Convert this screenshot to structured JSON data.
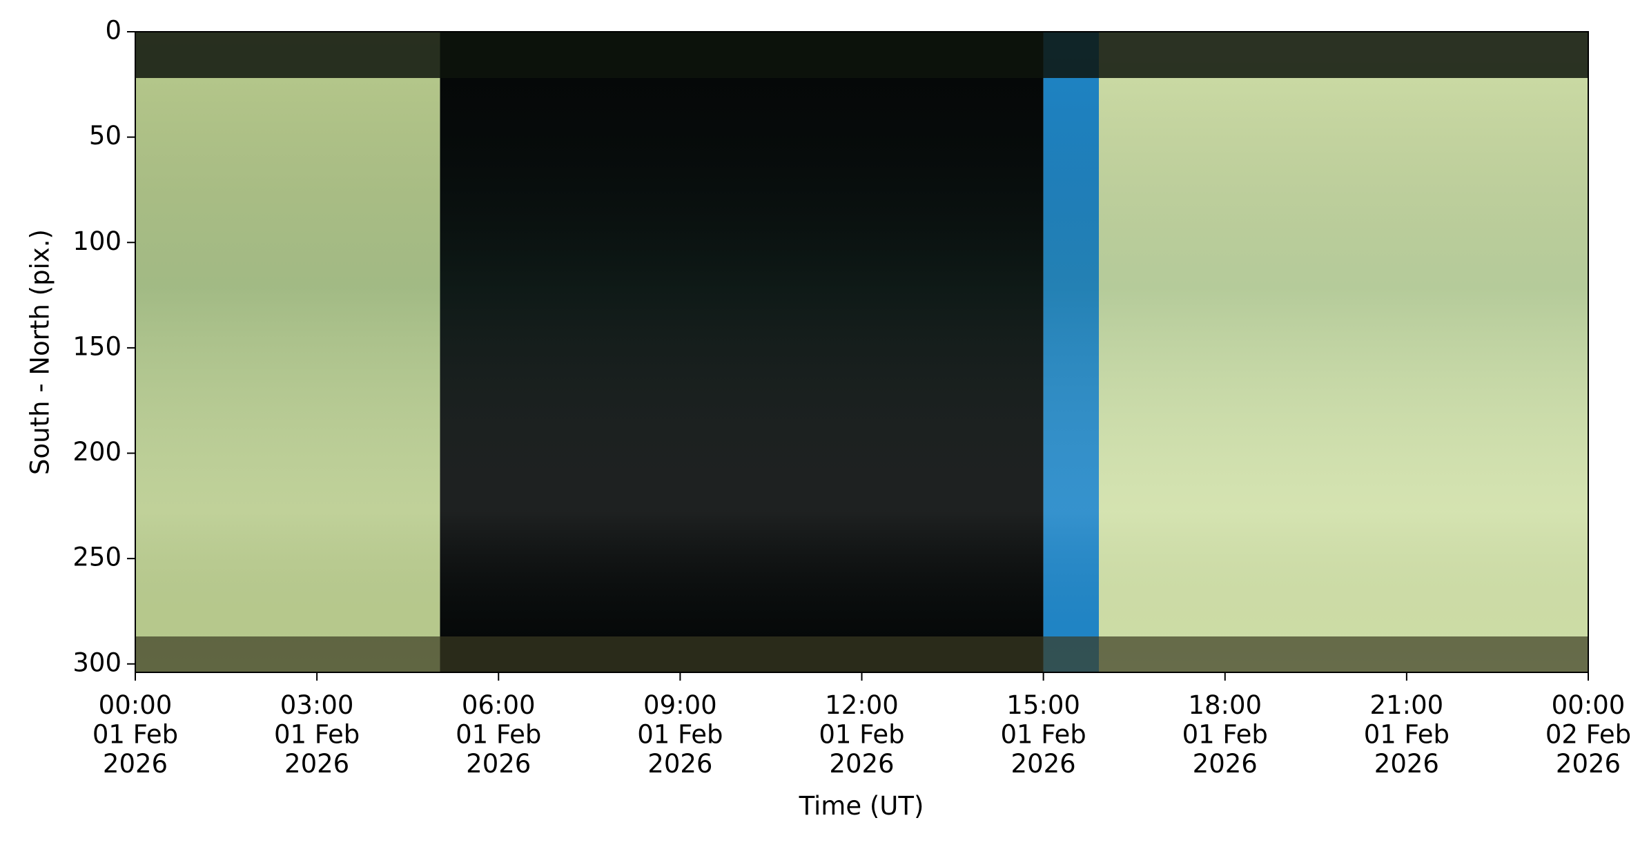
{
  "chart_data": {
    "type": "image",
    "x_label": "Time (UT)",
    "y_label": "South - North (pix.)",
    "xlim": [
      "2026-02-01T00:00",
      "2026-02-02T00:00"
    ],
    "xticks": [
      {
        "value": "2026-02-01T00:00",
        "label": "00:00\n01 Feb\n2026"
      },
      {
        "value": "2026-02-01T03:00",
        "label": "03:00\n01 Feb\n2026"
      },
      {
        "value": "2026-02-01T06:00",
        "label": "06:00\n01 Feb\n2026"
      },
      {
        "value": "2026-02-01T09:00",
        "label": "09:00\n01 Feb\n2026"
      },
      {
        "value": "2026-02-01T12:00",
        "label": "12:00\n01 Feb\n2026"
      },
      {
        "value": "2026-02-01T15:00",
        "label": "15:00\n01 Feb\n2026"
      },
      {
        "value": "2026-02-01T18:00",
        "label": "18:00\n01 Feb\n2026"
      },
      {
        "value": "2026-02-01T21:00",
        "label": "21:00\n01 Feb\n2026"
      },
      {
        "value": "2026-02-02T00:00",
        "label": "00:00\n02 Feb\n2026"
      }
    ],
    "ylim": [
      304,
      0
    ],
    "yticks": [
      0,
      50,
      100,
      150,
      200,
      250,
      300
    ],
    "segments": [
      {
        "start": "2026-02-01T00:00",
        "end": "2026-02-01T05:02",
        "color": "#b9cc8e"
      },
      {
        "start": "2026-02-01T05:02",
        "end": "2026-02-01T15:00",
        "color": "#050808"
      },
      {
        "start": "2026-02-01T15:00",
        "end": "2026-02-01T15:55",
        "color": "#1f86c8"
      },
      {
        "start": "2026-02-01T15:55",
        "end": "2026-02-02T00:00",
        "color": "#d0e0a8"
      }
    ]
  }
}
